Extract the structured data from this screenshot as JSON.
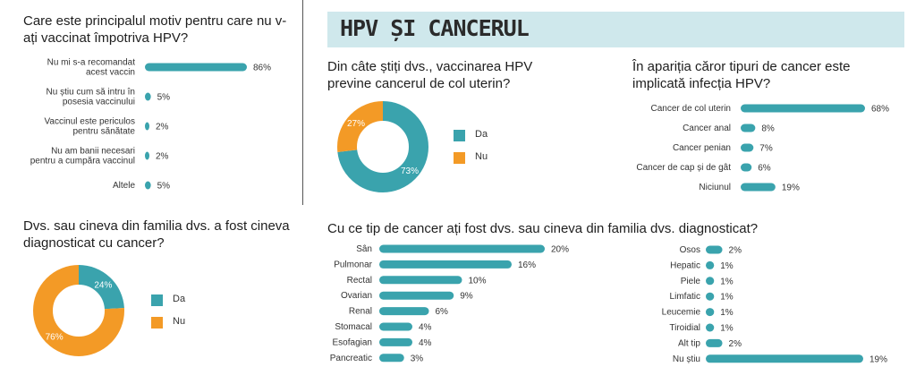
{
  "banner": {
    "title": "HPV ȘI CANCERUL"
  },
  "colors": {
    "teal": "#3aa3ad",
    "orange": "#f39a26",
    "banner_bg": "#cfe8ec"
  },
  "chart_data": [
    {
      "id": "reason",
      "type": "bar",
      "title": "Care este principalul motiv pentru care nu v-ați vaccinat împotriva HPV?",
      "categories": [
        [
          "Nu mi s-a recomandat",
          "acest vaccin"
        ],
        [
          "Nu știu cum să intru în",
          "posesia vaccinului"
        ],
        [
          "Vaccinul este periculos",
          "pentru sănătate"
        ],
        [
          "Nu am banii necesari",
          "pentru a cumpăra vaccinul"
        ],
        [
          "Altele"
        ]
      ],
      "values": [
        86,
        5,
        2,
        2,
        5
      ],
      "value_labels": [
        "86%",
        "5%",
        "2%",
        "2%",
        "5%"
      ]
    },
    {
      "id": "prevents",
      "type": "pie",
      "title": "Din câte știți dvs., vaccinarea HPV previne cancerul de col uterin?",
      "slices": [
        {
          "label": "Da",
          "value": 73,
          "text": "73%"
        },
        {
          "label": "Nu",
          "value": 27,
          "text": "27%"
        }
      ],
      "legend": [
        "Da",
        "Nu"
      ]
    },
    {
      "id": "types",
      "type": "bar",
      "title": "În apariția căror tipuri de cancer este implicată infecția HPV?",
      "categories": [
        "Cancer de col uterin",
        "Cancer anal",
        "Cancer penian",
        "Cancer de cap și de gât",
        "Niciunul"
      ],
      "values": [
        68,
        8,
        7,
        6,
        19
      ],
      "value_labels": [
        "68%",
        "8%",
        "7%",
        "6%",
        "19%"
      ]
    },
    {
      "id": "family",
      "type": "pie",
      "title": "Dvs. sau cineva din familia dvs. a fost cineva diagnosticat cu cancer?",
      "slices": [
        {
          "label": "Da",
          "value": 24,
          "text": "24%"
        },
        {
          "label": "Nu",
          "value": 76,
          "text": "76%"
        }
      ],
      "legend": [
        "Da",
        "Nu"
      ]
    },
    {
      "id": "diag_left",
      "type": "bar",
      "title": "Cu ce tip de cancer ați fost dvs. sau cineva din familia dvs. diagnosticat?",
      "categories": [
        "Sân",
        "Pulmonar",
        "Rectal",
        "Ovarian",
        "Renal",
        "Stomacal",
        "Esofagian",
        "Pancreatic"
      ],
      "values": [
        20,
        16,
        10,
        9,
        6,
        4,
        4,
        3
      ],
      "value_labels": [
        "20%",
        "16%",
        "10%",
        "9%",
        "6%",
        "4%",
        "4%",
        "3%"
      ]
    },
    {
      "id": "diag_right",
      "type": "bar",
      "categories": [
        "Osos",
        "Hepatic",
        "Piele",
        "Limfatic",
        "Leucemie",
        "Tiroidial",
        "Alt tip",
        "Nu știu"
      ],
      "values": [
        2,
        1,
        1,
        1,
        1,
        1,
        2,
        19
      ],
      "value_labels": [
        "2%",
        "1%",
        "1%",
        "1%",
        "1%",
        "1%",
        "2%",
        "19%"
      ]
    }
  ]
}
